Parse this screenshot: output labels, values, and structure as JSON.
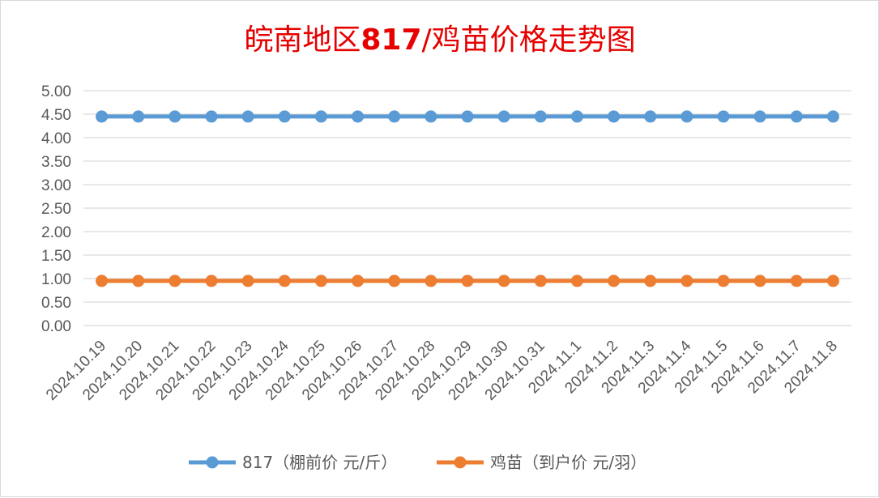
{
  "chart_data": {
    "type": "line",
    "title": "皖南地区817/鸡苗价格走势图",
    "categories": [
      "2024.10.19",
      "2024.10.20",
      "2024.10.21",
      "2024.10.22",
      "2024.10.23",
      "2024.10.24",
      "2024.10.25",
      "2024.10.26",
      "2024.10.27",
      "2024.10.28",
      "2024.10.29",
      "2024.10.30",
      "2024.10.31",
      "2024.11.1",
      "2024.11.2",
      "2024.11.3",
      "2024.11.4",
      "2024.11.5",
      "2024.11.6",
      "2024.11.7",
      "2024.11.8"
    ],
    "ylim": [
      0,
      5
    ],
    "yticks": [
      "0.00",
      "0.50",
      "1.00",
      "1.50",
      "2.00",
      "2.50",
      "3.00",
      "3.50",
      "4.00",
      "4.50",
      "5.00"
    ],
    "grid": true,
    "legend_position": "bottom",
    "series": [
      {
        "name": "817（棚前价 元/斤）",
        "color": "#5b9bd5",
        "values": [
          4.45,
          4.45,
          4.45,
          4.45,
          4.45,
          4.45,
          4.45,
          4.45,
          4.45,
          4.45,
          4.45,
          4.45,
          4.45,
          4.45,
          4.45,
          4.45,
          4.45,
          4.45,
          4.45,
          4.45,
          4.45
        ]
      },
      {
        "name": "鸡苗（到户价 元/羽）",
        "color": "#ed7d31",
        "values": [
          0.95,
          0.95,
          0.95,
          0.95,
          0.95,
          0.95,
          0.95,
          0.95,
          0.95,
          0.95,
          0.95,
          0.95,
          0.95,
          0.95,
          0.95,
          0.95,
          0.95,
          0.95,
          0.95,
          0.95,
          0.95
        ]
      }
    ]
  }
}
